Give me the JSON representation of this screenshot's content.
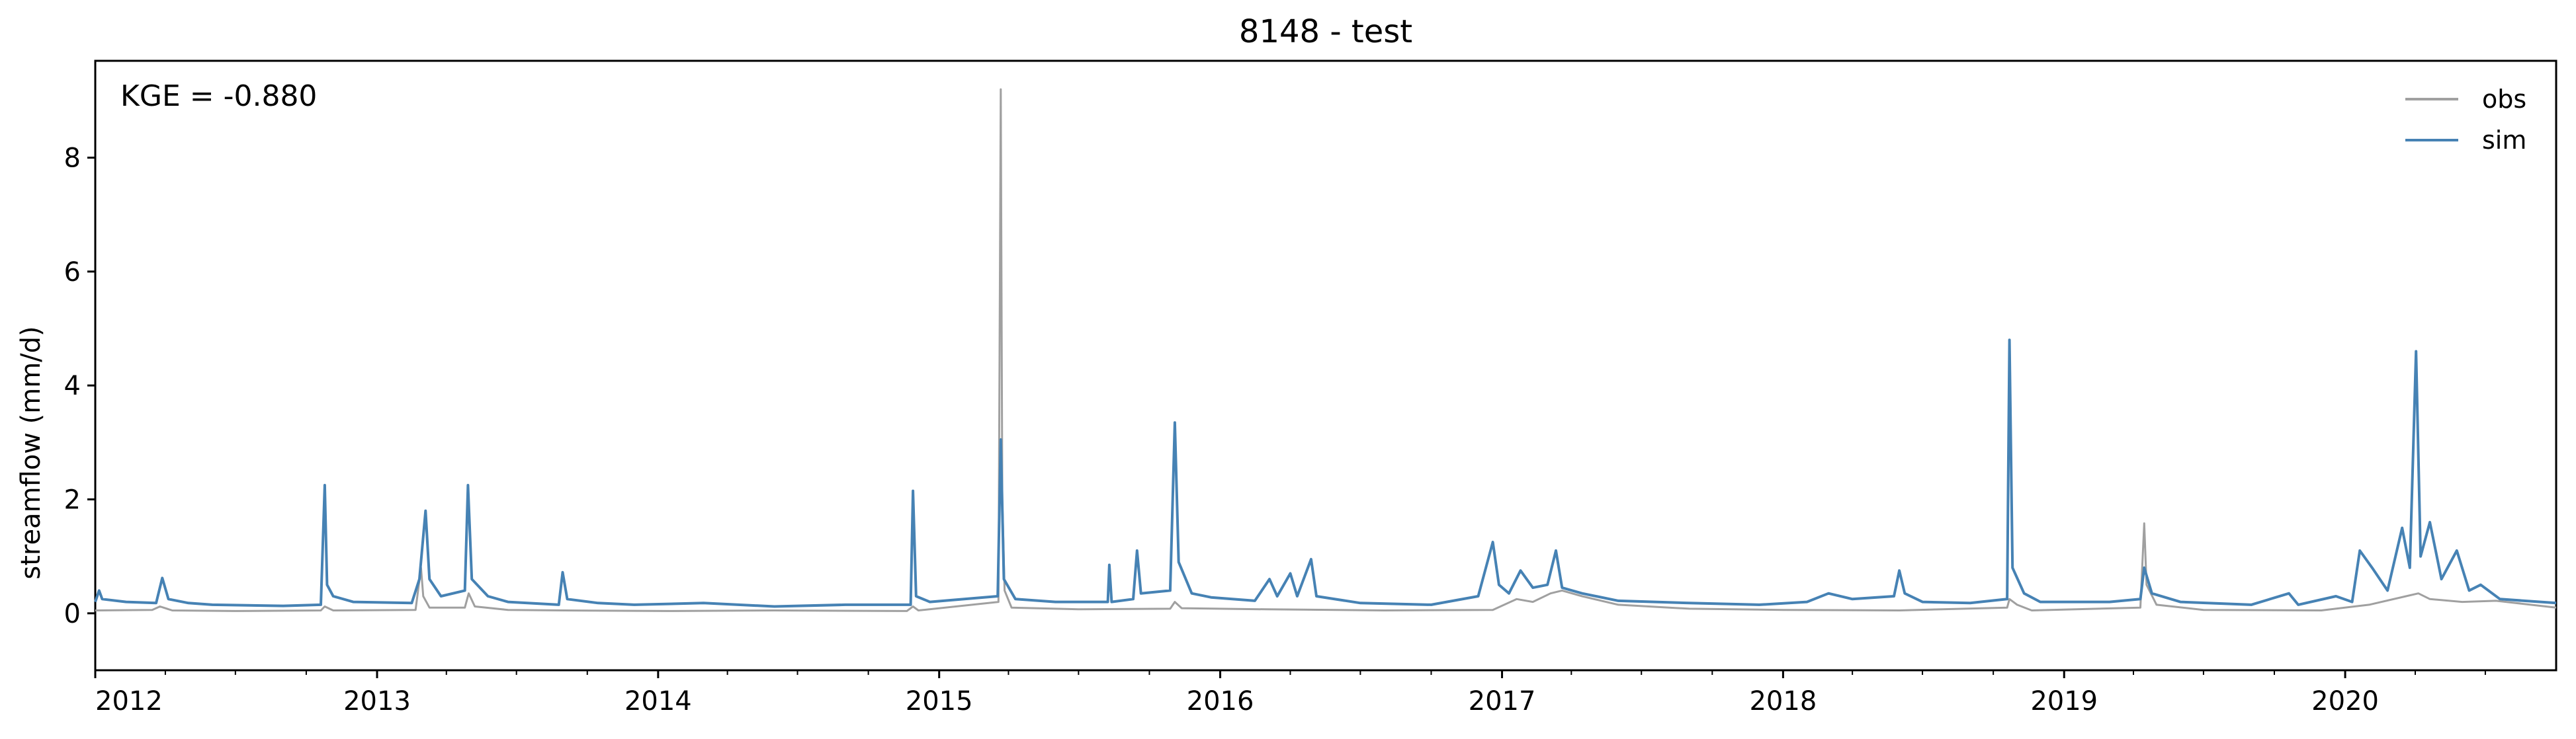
{
  "chart_data": {
    "type": "line",
    "title": "8148 - test",
    "xlabel": "",
    "ylabel": "streamflow (mm/d)",
    "xlim": [
      "2012-01-01",
      "2020-10-01"
    ],
    "ylim": [
      -1.0,
      9.7
    ],
    "yticks": [
      0,
      2,
      4,
      6,
      8
    ],
    "ytick_labels": [
      "0",
      "2",
      "4",
      "6",
      "8"
    ],
    "xticks": [
      "2012-01-01",
      "2013-01-01",
      "2014-01-01",
      "2015-01-01",
      "2016-01-01",
      "2017-01-01",
      "2018-01-01",
      "2019-01-01",
      "2020-01-01"
    ],
    "xtick_labels": [
      "2012",
      "2013",
      "2014",
      "2015",
      "2016",
      "2017",
      "2018",
      "2019",
      "2020"
    ],
    "grid": false,
    "legend": "top-right",
    "annotation": "KGE = -0.880",
    "series": [
      {
        "name": "obs",
        "color": "#a0a0a0",
        "points": [
          [
            "2012-01-01",
            0.05
          ],
          [
            "2012-03-15",
            0.06
          ],
          [
            "2012-03-25",
            0.12
          ],
          [
            "2012-04-10",
            0.05
          ],
          [
            "2012-07-01",
            0.04
          ],
          [
            "2012-10-20",
            0.05
          ],
          [
            "2012-10-25",
            0.12
          ],
          [
            "2012-11-05",
            0.05
          ],
          [
            "2013-02-20",
            0.06
          ],
          [
            "2013-02-27",
            0.8
          ],
          [
            "2013-03-02",
            0.3
          ],
          [
            "2013-03-10",
            0.1
          ],
          [
            "2013-04-25",
            0.1
          ],
          [
            "2013-04-30",
            0.35
          ],
          [
            "2013-05-08",
            0.12
          ],
          [
            "2013-06-20",
            0.06
          ],
          [
            "2013-09-01",
            0.05
          ],
          [
            "2014-01-15",
            0.04
          ],
          [
            "2014-06-01",
            0.05
          ],
          [
            "2014-11-20",
            0.04
          ],
          [
            "2014-11-28",
            0.12
          ],
          [
            "2014-12-05",
            0.05
          ],
          [
            "2015-03-19",
            0.2
          ],
          [
            "2015-03-22",
            9.2
          ],
          [
            "2015-03-24",
            2.0
          ],
          [
            "2015-03-27",
            0.4
          ],
          [
            "2015-04-05",
            0.1
          ],
          [
            "2015-07-01",
            0.07
          ],
          [
            "2015-10-28",
            0.08
          ],
          [
            "2015-11-03",
            0.2
          ],
          [
            "2015-11-12",
            0.09
          ],
          [
            "2016-03-01",
            0.07
          ],
          [
            "2016-08-01",
            0.05
          ],
          [
            "2016-12-20",
            0.06
          ],
          [
            "2017-01-20",
            0.25
          ],
          [
            "2017-02-10",
            0.2
          ],
          [
            "2017-03-05",
            0.35
          ],
          [
            "2017-03-20",
            0.4
          ],
          [
            "2017-04-15",
            0.3
          ],
          [
            "2017-06-01",
            0.15
          ],
          [
            "2017-09-01",
            0.08
          ],
          [
            "2018-01-01",
            0.06
          ],
          [
            "2018-06-01",
            0.05
          ],
          [
            "2018-10-19",
            0.1
          ],
          [
            "2018-10-22",
            0.25
          ],
          [
            "2018-11-01",
            0.15
          ],
          [
            "2018-11-20",
            0.05
          ],
          [
            "2019-04-10",
            0.1
          ],
          [
            "2019-04-15",
            1.58
          ],
          [
            "2019-04-18",
            0.5
          ],
          [
            "2019-05-01",
            0.15
          ],
          [
            "2019-07-01",
            0.06
          ],
          [
            "2019-12-01",
            0.05
          ],
          [
            "2020-02-01",
            0.15
          ],
          [
            "2020-03-20",
            0.3
          ],
          [
            "2020-04-05",
            0.35
          ],
          [
            "2020-04-20",
            0.25
          ],
          [
            "2020-06-01",
            0.2
          ],
          [
            "2020-07-15",
            0.22
          ],
          [
            "2020-10-01",
            0.1
          ]
        ]
      },
      {
        "name": "sim",
        "color": "#4682b4",
        "points": [
          [
            "2012-01-01",
            0.2
          ],
          [
            "2012-01-06",
            0.4
          ],
          [
            "2012-01-10",
            0.25
          ],
          [
            "2012-02-10",
            0.2
          ],
          [
            "2012-03-20",
            0.18
          ],
          [
            "2012-03-28",
            0.62
          ],
          [
            "2012-04-05",
            0.25
          ],
          [
            "2012-05-01",
            0.18
          ],
          [
            "2012-06-01",
            0.15
          ],
          [
            "2012-09-01",
            0.13
          ],
          [
            "2012-10-20",
            0.15
          ],
          [
            "2012-10-25",
            2.25
          ],
          [
            "2012-10-28",
            0.5
          ],
          [
            "2012-11-05",
            0.3
          ],
          [
            "2012-12-01",
            0.2
          ],
          [
            "2013-02-15",
            0.18
          ],
          [
            "2013-02-25",
            0.6
          ],
          [
            "2013-03-05",
            1.8
          ],
          [
            "2013-03-10",
            0.6
          ],
          [
            "2013-03-25",
            0.3
          ],
          [
            "2013-04-25",
            0.4
          ],
          [
            "2013-04-29",
            2.25
          ],
          [
            "2013-05-04",
            0.6
          ],
          [
            "2013-05-25",
            0.3
          ],
          [
            "2013-06-20",
            0.2
          ],
          [
            "2013-08-25",
            0.15
          ],
          [
            "2013-08-30",
            0.72
          ],
          [
            "2013-09-05",
            0.25
          ],
          [
            "2013-10-15",
            0.18
          ],
          [
            "2013-12-01",
            0.15
          ],
          [
            "2014-03-01",
            0.18
          ],
          [
            "2014-06-01",
            0.12
          ],
          [
            "2014-09-01",
            0.15
          ],
          [
            "2014-11-25",
            0.15
          ],
          [
            "2014-11-28",
            2.15
          ],
          [
            "2014-12-02",
            0.3
          ],
          [
            "2014-12-20",
            0.2
          ],
          [
            "2015-03-18",
            0.3
          ],
          [
            "2015-03-22",
            3.05
          ],
          [
            "2015-03-26",
            0.6
          ],
          [
            "2015-04-10",
            0.25
          ],
          [
            "2015-06-01",
            0.2
          ],
          [
            "2015-08-08",
            0.2
          ],
          [
            "2015-08-10",
            0.85
          ],
          [
            "2015-08-13",
            0.2
          ],
          [
            "2015-09-10",
            0.25
          ],
          [
            "2015-09-15",
            1.1
          ],
          [
            "2015-09-20",
            0.35
          ],
          [
            "2015-10-28",
            0.4
          ],
          [
            "2015-11-03",
            3.35
          ],
          [
            "2015-11-08",
            0.9
          ],
          [
            "2015-11-25",
            0.35
          ],
          [
            "2015-12-20",
            0.28
          ],
          [
            "2016-02-15",
            0.22
          ],
          [
            "2016-03-05",
            0.6
          ],
          [
            "2016-03-15",
            0.3
          ],
          [
            "2016-04-01",
            0.7
          ],
          [
            "2016-04-10",
            0.3
          ],
          [
            "2016-04-28",
            0.95
          ],
          [
            "2016-05-05",
            0.3
          ],
          [
            "2016-07-01",
            0.18
          ],
          [
            "2016-10-01",
            0.15
          ],
          [
            "2016-12-01",
            0.3
          ],
          [
            "2016-12-20",
            1.25
          ],
          [
            "2016-12-28",
            0.5
          ],
          [
            "2017-01-10",
            0.35
          ],
          [
            "2017-01-25",
            0.75
          ],
          [
            "2017-02-10",
            0.45
          ],
          [
            "2017-03-01",
            0.5
          ],
          [
            "2017-03-12",
            1.1
          ],
          [
            "2017-03-20",
            0.45
          ],
          [
            "2017-04-15",
            0.35
          ],
          [
            "2017-06-01",
            0.22
          ],
          [
            "2017-09-01",
            0.18
          ],
          [
            "2017-12-01",
            0.15
          ],
          [
            "2018-02-01",
            0.2
          ],
          [
            "2018-03-01",
            0.35
          ],
          [
            "2018-04-01",
            0.25
          ],
          [
            "2018-05-25",
            0.3
          ],
          [
            "2018-06-01",
            0.75
          ],
          [
            "2018-06-08",
            0.35
          ],
          [
            "2018-07-01",
            0.2
          ],
          [
            "2018-09-01",
            0.18
          ],
          [
            "2018-10-19",
            0.25
          ],
          [
            "2018-10-22",
            4.8
          ],
          [
            "2018-10-26",
            0.8
          ],
          [
            "2018-11-10",
            0.35
          ],
          [
            "2018-12-01",
            0.2
          ],
          [
            "2019-03-01",
            0.2
          ],
          [
            "2019-04-10",
            0.25
          ],
          [
            "2019-04-15",
            0.8
          ],
          [
            "2019-04-25",
            0.35
          ],
          [
            "2019-06-01",
            0.2
          ],
          [
            "2019-09-01",
            0.15
          ],
          [
            "2019-10-20",
            0.35
          ],
          [
            "2019-11-01",
            0.15
          ],
          [
            "2019-12-20",
            0.3
          ],
          [
            "2020-01-10",
            0.2
          ],
          [
            "2020-01-20",
            1.1
          ],
          [
            "2020-02-05",
            0.8
          ],
          [
            "2020-02-25",
            0.4
          ],
          [
            "2020-03-15",
            1.5
          ],
          [
            "2020-03-25",
            0.8
          ],
          [
            "2020-04-02",
            4.6
          ],
          [
            "2020-04-08",
            1.0
          ],
          [
            "2020-04-20",
            1.6
          ],
          [
            "2020-05-05",
            0.6
          ],
          [
            "2020-05-25",
            1.1
          ],
          [
            "2020-06-10",
            0.4
          ],
          [
            "2020-06-25",
            0.5
          ],
          [
            "2020-07-20",
            0.25
          ],
          [
            "2020-10-01",
            0.18
          ]
        ]
      }
    ]
  }
}
